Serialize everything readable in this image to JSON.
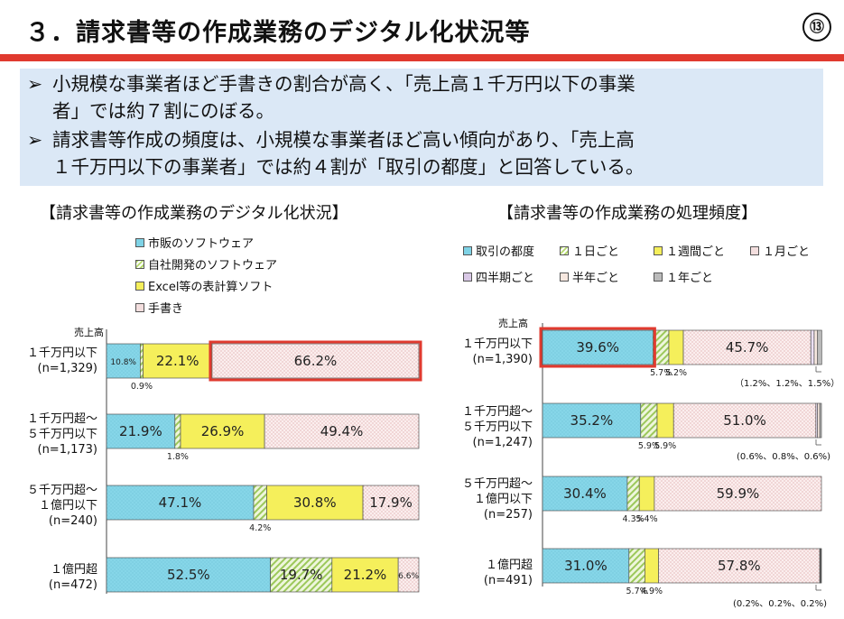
{
  "header": {
    "title": "３．請求書等の作成業務のデジタル化状況等",
    "page_number": "⑬"
  },
  "summary": {
    "bullets": [
      {
        "arrow": "➢",
        "lines": [
          "小規模な事業者ほど手書きの割合が高く、「売上高１千万円以下の事業",
          "者」では約７割にのぼる。"
        ]
      },
      {
        "arrow": "➢",
        "lines": [
          "請求書等作成の頻度は、小規模な事業者ほど高い傾向があり、「売上高",
          "１千万円以下の事業者」では約４割が「取引の都度」と回答している。"
        ]
      }
    ]
  },
  "colors": {
    "accent_red": "#e03a2f",
    "summary_bg": "#dbe8f6",
    "cyan": "#7fd3e6",
    "green_hatch": "#b5d96e",
    "yellow": "#f5ef5b",
    "pink_dots": "#f3dede",
    "purple_dots": "#d9c8e6",
    "gray": "#bbbbbb"
  },
  "chart_data": [
    {
      "type": "bar",
      "orientation": "horizontal",
      "stacked": true,
      "title": "【請求書等の作成業務のデジタル化状況】",
      "axis_label": "売上高",
      "categories": [
        {
          "lines": [
            "１千万円以下",
            "(n=1,329)"
          ]
        },
        {
          "lines": [
            "１千万円超～",
            "５千万円以下",
            "(n=1,173)"
          ]
        },
        {
          "lines": [
            "５千万円超～",
            "１億円以下",
            "(n=240)"
          ]
        },
        {
          "lines": [
            "１億円超",
            "(n=472)"
          ]
        }
      ],
      "series": [
        {
          "name": "市販のソフトウェア",
          "pattern": "cyan",
          "values": [
            10.8,
            21.9,
            47.1,
            52.5
          ],
          "labels": [
            "10.8%",
            "21.9%",
            "47.1%",
            "52.5%"
          ]
        },
        {
          "name": "自社開発のソフトウェア",
          "pattern": "green",
          "values": [
            0.9,
            1.8,
            4.2,
            19.7
          ],
          "labels": [
            "0.9%",
            "1.8%",
            "4.2%",
            "19.7%"
          ]
        },
        {
          "name": "Excel等の表計算ソフト",
          "pattern": "yellow",
          "values": [
            22.1,
            26.9,
            30.8,
            21.2
          ],
          "labels": [
            "22.1%",
            "26.9%",
            "30.8%",
            "21.2%"
          ]
        },
        {
          "name": "手書き",
          "pattern": "pink",
          "values": [
            66.2,
            49.4,
            17.9,
            6.6
          ],
          "labels": [
            "66.2%",
            "49.4%",
            "17.9%",
            "6.6%"
          ]
        }
      ],
      "highlight": [
        {
          "category": 0,
          "series": 3
        }
      ],
      "xlim": [
        0,
        100
      ]
    },
    {
      "type": "bar",
      "orientation": "horizontal",
      "stacked": true,
      "title": "【請求書等の作成業務の処理頻度】",
      "axis_label": "売上高",
      "categories": [
        {
          "lines": [
            "１千万円以下",
            "(n=1,390)"
          ]
        },
        {
          "lines": [
            "１千万円超～",
            "５千万円以下",
            "(n=1,247)"
          ]
        },
        {
          "lines": [
            "５千万円超～",
            "１億円以下",
            "(n=257)"
          ]
        },
        {
          "lines": [
            "１億円超",
            "(n=491)"
          ]
        }
      ],
      "series": [
        {
          "name": "取引の都度",
          "pattern": "cyan",
          "values": [
            39.6,
            35.2,
            30.4,
            31.0
          ],
          "labels": [
            "39.6%",
            "35.2%",
            "30.4%",
            "31.0%"
          ]
        },
        {
          "name": "１日ごと",
          "pattern": "green",
          "values": [
            5.7,
            5.9,
            4.3,
            5.7
          ],
          "labels": [
            "5.7%",
            "5.9%",
            "4.3%",
            "5.7%"
          ]
        },
        {
          "name": "１週間ごと",
          "pattern": "yellow",
          "values": [
            5.2,
            5.9,
            5.4,
            4.9
          ],
          "labels": [
            "5.2%",
            "5.9%",
            "5.4%",
            "4.9%"
          ]
        },
        {
          "name": "１月ごと",
          "pattern": "pink",
          "values": [
            45.7,
            51.0,
            59.9,
            57.8
          ],
          "labels": [
            "45.7%",
            "51.0%",
            "59.9%",
            "57.8%"
          ]
        },
        {
          "name": "四半期ごと",
          "pattern": "purple",
          "values": [
            1.2,
            0.6,
            0.0,
            0.2
          ],
          "labels": [
            "",
            "",
            "",
            ""
          ]
        },
        {
          "name": "半年ごと",
          "pattern": "beige",
          "values": [
            1.2,
            0.8,
            0.0,
            0.2
          ],
          "labels": [
            "",
            "",
            "",
            ""
          ]
        },
        {
          "name": "１年ごと",
          "pattern": "gray",
          "values": [
            1.5,
            0.6,
            0.0,
            0.2
          ],
          "labels": [
            "",
            "",
            "",
            ""
          ]
        }
      ],
      "annotations": [
        "（1.2%、1.2%、1.5%）",
        "(0.6%、0.8%、0.6%)",
        "",
        "(0.2%、0.2%、0.2%)"
      ],
      "highlight": [
        {
          "category": 0,
          "series": 0
        }
      ],
      "xlim": [
        0,
        100
      ]
    }
  ]
}
